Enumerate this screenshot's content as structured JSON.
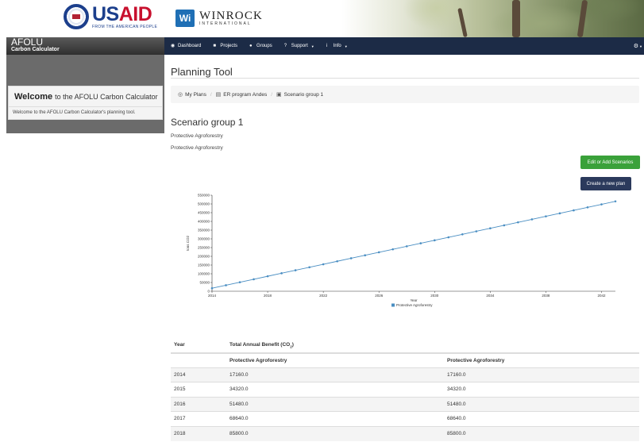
{
  "header": {
    "usaid": {
      "us": "US",
      "aid": "AID",
      "tagline": "FROM THE AMERICAN PEOPLE"
    },
    "winrock": {
      "badge": "Wi",
      "name": "WINROCK",
      "sub": "INTERNATIONAL"
    }
  },
  "app": {
    "title_line1": "AFOLU",
    "title_line2": "Carbon Calculator"
  },
  "sidebar": {
    "welcome_bold": "Welcome",
    "welcome_rest": "to the AFOLU Carbon Calculator",
    "welcome_text": "Welcome to the AFOLU Carbon Calculator's planning tool."
  },
  "nav": {
    "items": [
      {
        "label": "Dashboard",
        "icon": "dashboard-icon",
        "caret": false
      },
      {
        "label": "Projects",
        "icon": "briefcase-icon",
        "caret": false
      },
      {
        "label": "Groups",
        "icon": "users-icon",
        "caret": false
      },
      {
        "label": "Support",
        "icon": "question-icon",
        "caret": true
      },
      {
        "label": "Info",
        "icon": "info-icon",
        "caret": true
      }
    ],
    "settings_icon": "cogs-icon"
  },
  "page": {
    "title": "Planning Tool"
  },
  "breadcrumb": [
    {
      "label": "My Plans",
      "icon": "globe-icon"
    },
    {
      "label": "ER program Andes",
      "icon": "building-icon"
    },
    {
      "label": "Scenario group 1",
      "icon": "chart-icon"
    }
  ],
  "scenario": {
    "title": "Scenario group 1",
    "desc1": "Protective Agroforestry",
    "desc2": "Protective Agroforestry"
  },
  "buttons": {
    "edit_scenarios": "Edit or Add Scenarios",
    "new_plan": "Create a new plan"
  },
  "colors": {
    "navbar": "#1c2b46",
    "series": "#4a8ec2",
    "green": "#3aa13a",
    "navy": "#2b3a5c"
  },
  "chart_data": {
    "type": "line",
    "xlabel": "Year",
    "ylabel": "tons CO2",
    "x": [
      2014,
      2015,
      2016,
      2017,
      2018,
      2019,
      2020,
      2021,
      2022,
      2023,
      2024,
      2025,
      2026,
      2027,
      2028,
      2029,
      2030,
      2031,
      2032,
      2033,
      2034,
      2035,
      2036,
      2037,
      2038,
      2039,
      2040,
      2041,
      2042,
      2043
    ],
    "xticks": [
      2014,
      2018,
      2022,
      2026,
      2030,
      2034,
      2038,
      2042
    ],
    "yticks": [
      0,
      50000,
      100000,
      150000,
      200000,
      250000,
      300000,
      350000,
      400000,
      450000,
      500000,
      550000
    ],
    "ylim": [
      0,
      550000
    ],
    "xlim": [
      2014,
      2043
    ],
    "legend": "bottom",
    "series": [
      {
        "name": "Protective Agroforestry",
        "values": [
          17160,
          34320,
          51480,
          68640,
          85800,
          102960,
          120120,
          137280,
          154440,
          171600,
          188760,
          205920,
          223080,
          240240,
          257400,
          274560,
          291720,
          308880,
          326040,
          343200,
          360360,
          377520,
          394680,
          411840,
          429000,
          446160,
          463320,
          480480,
          497640,
          514800
        ]
      }
    ]
  },
  "table": {
    "col_year": "Year",
    "col_benefit": "Total Annual Benefit (CO",
    "col_benefit_sub": "2",
    "col_benefit_end": ")",
    "sub_headers": [
      "Protective Agroforestry",
      "Protective Agroforestry"
    ],
    "rows": [
      [
        "2014",
        "17160.0",
        "17160.0"
      ],
      [
        "2015",
        "34320.0",
        "34320.0"
      ],
      [
        "2016",
        "51480.0",
        "51480.0"
      ],
      [
        "2017",
        "68640.0",
        "68640.0"
      ],
      [
        "2018",
        "85800.0",
        "85800.0"
      ]
    ]
  }
}
